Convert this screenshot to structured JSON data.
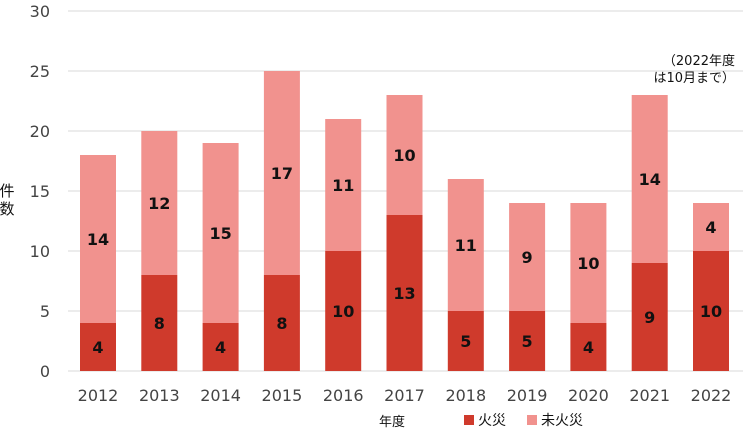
{
  "chart_data": {
    "type": "bar",
    "stacked": true,
    "categories": [
      "2012",
      "2013",
      "2014",
      "2015",
      "2016",
      "2017",
      "2018",
      "2019",
      "2020",
      "2021",
      "2022"
    ],
    "series": [
      {
        "name": "火災",
        "values": [
          4,
          8,
          4,
          8,
          10,
          13,
          5,
          5,
          4,
          9,
          10
        ],
        "color": "#cf3a2c"
      },
      {
        "name": "未火災",
        "values": [
          14,
          12,
          15,
          17,
          11,
          10,
          11,
          9,
          10,
          14,
          4
        ],
        "color": "#f1928e"
      }
    ],
    "ylabel": "件数",
    "xlabel": "年度",
    "ylim": [
      0,
      30
    ],
    "yticks": [
      "0",
      "5",
      "10",
      "15",
      "20",
      "25",
      "30"
    ],
    "grid": true,
    "legend_position": "bottom",
    "annotation": [
      "（2022年度",
      "は10月まで）"
    ]
  }
}
